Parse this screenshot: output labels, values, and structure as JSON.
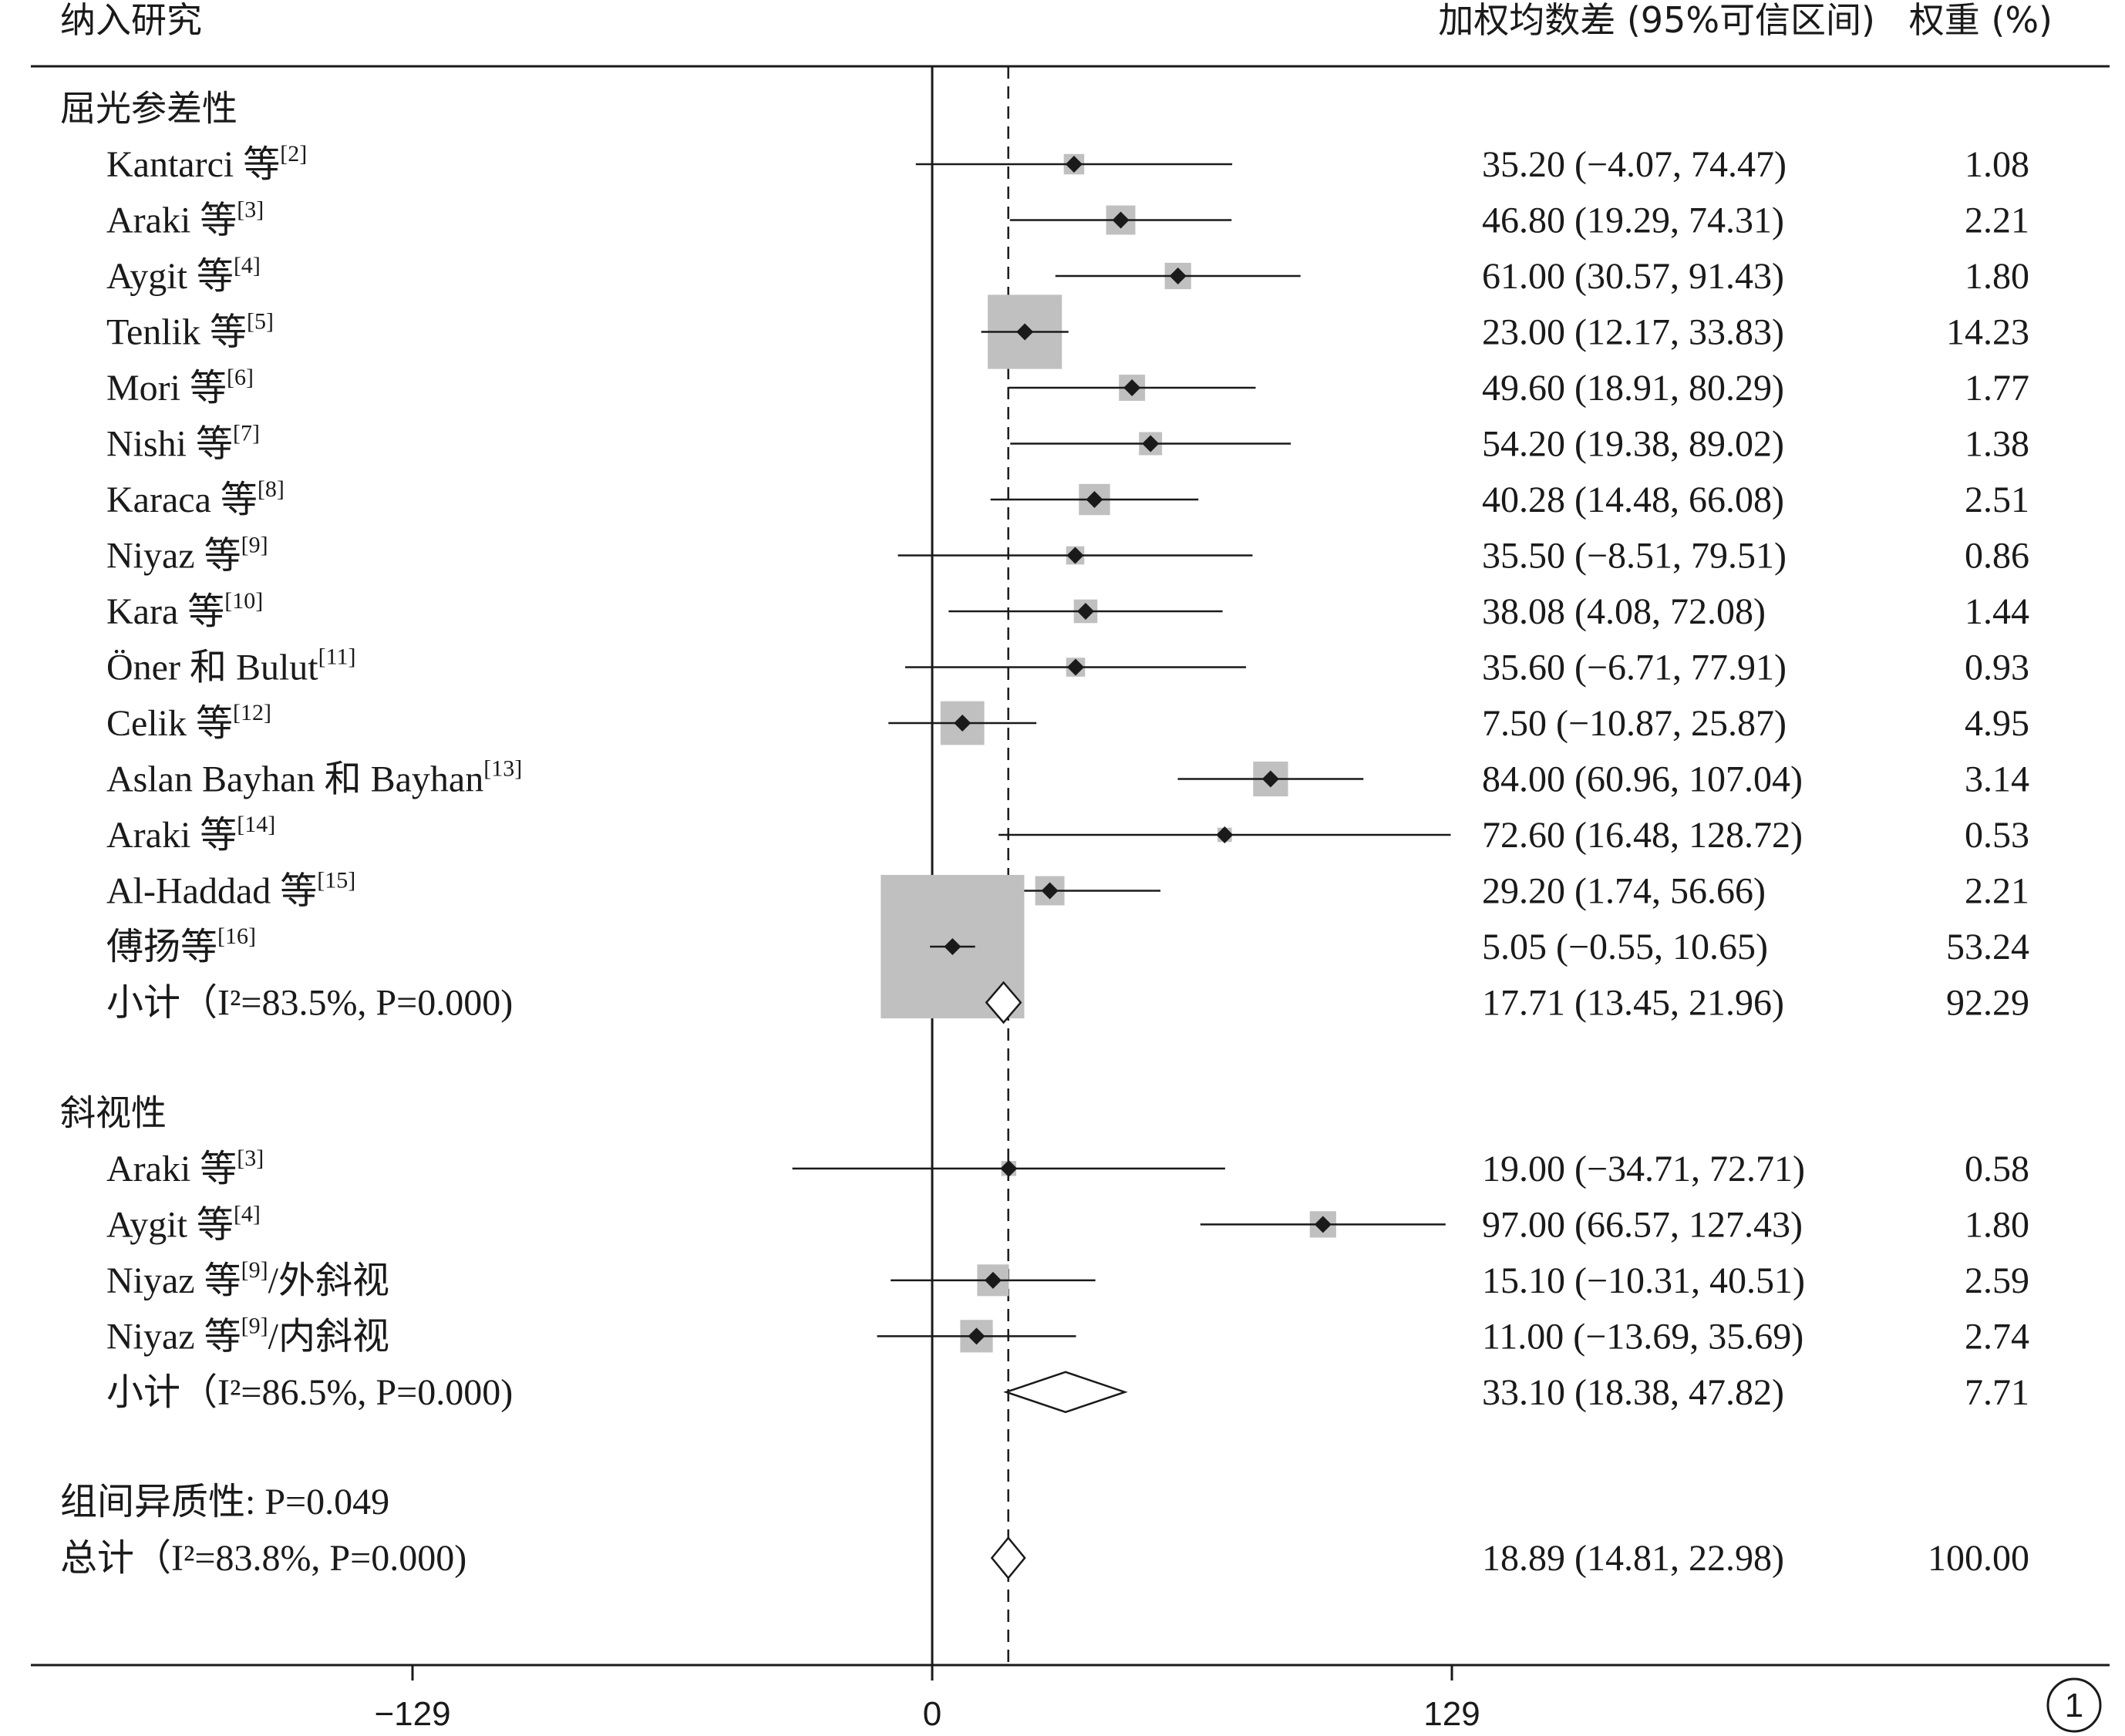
{
  "header": {
    "col_study": "纳入研究",
    "col_effect": "加权均数差 (95%可信区间)",
    "col_weight": "权重 (%)"
  },
  "page_marker": "1",
  "chart_data": {
    "type": "forest",
    "colors": {
      "marker": "#1a1a1a",
      "weight_box": "#c0c0c0",
      "line": "#1a1a1a"
    },
    "xaxis": {
      "ticks": [
        -129,
        0,
        129
      ],
      "tick_labels": [
        "−129",
        "0",
        "129"
      ],
      "range": [
        -129,
        129
      ]
    },
    "overall_reference_line": 18.89,
    "groups": [
      {
        "title": "屈光参差性",
        "studies": [
          {
            "label": "Kantarci 等",
            "ref": "[2]",
            "est": 35.2,
            "lo": -4.07,
            "hi": 74.47,
            "ci_text": "35.20 (−4.07, 74.47)",
            "weight": 1.08,
            "weight_text": "1.08"
          },
          {
            "label": "Araki 等",
            "ref": "[3]",
            "est": 46.8,
            "lo": 19.29,
            "hi": 74.31,
            "ci_text": "46.80 (19.29, 74.31)",
            "weight": 2.21,
            "weight_text": "2.21"
          },
          {
            "label": "Aygit 等",
            "ref": "[4]",
            "est": 61.0,
            "lo": 30.57,
            "hi": 91.43,
            "ci_text": "61.00 (30.57, 91.43)",
            "weight": 1.8,
            "weight_text": "1.80"
          },
          {
            "label": "Tenlik 等",
            "ref": "[5]",
            "est": 23.0,
            "lo": 12.17,
            "hi": 33.83,
            "ci_text": "23.00 (12.17, 33.83)",
            "weight": 14.23,
            "weight_text": "14.23"
          },
          {
            "label": "Mori 等",
            "ref": "[6]",
            "est": 49.6,
            "lo": 18.91,
            "hi": 80.29,
            "ci_text": "49.60 (18.91, 80.29)",
            "weight": 1.77,
            "weight_text": "1.77"
          },
          {
            "label": "Nishi 等",
            "ref": "[7]",
            "est": 54.2,
            "lo": 19.38,
            "hi": 89.02,
            "ci_text": "54.20 (19.38, 89.02)",
            "weight": 1.38,
            "weight_text": "1.38"
          },
          {
            "label": "Karaca 等",
            "ref": "[8]",
            "est": 40.28,
            "lo": 14.48,
            "hi": 66.08,
            "ci_text": "40.28 (14.48, 66.08)",
            "weight": 2.51,
            "weight_text": "2.51"
          },
          {
            "label": "Niyaz 等",
            "ref": "[9]",
            "est": 35.5,
            "lo": -8.51,
            "hi": 79.51,
            "ci_text": "35.50 (−8.51, 79.51)",
            "weight": 0.86,
            "weight_text": "0.86"
          },
          {
            "label": "Kara 等",
            "ref": "[10]",
            "est": 38.08,
            "lo": 4.08,
            "hi": 72.08,
            "ci_text": "38.08 (4.08, 72.08)",
            "weight": 1.44,
            "weight_text": "1.44"
          },
          {
            "label": "Öner 和 Bulut",
            "ref": "[11]",
            "est": 35.6,
            "lo": -6.71,
            "hi": 77.91,
            "ci_text": "35.60 (−6.71, 77.91)",
            "weight": 0.93,
            "weight_text": "0.93"
          },
          {
            "label": "Celik 等",
            "ref": "[12]",
            "est": 7.5,
            "lo": -10.87,
            "hi": 25.87,
            "ci_text": "7.50 (−10.87, 25.87)",
            "weight": 4.95,
            "weight_text": "4.95"
          },
          {
            "label": "Aslan Bayhan 和 Bayhan",
            "ref": "[13]",
            "est": 84.0,
            "lo": 60.96,
            "hi": 107.04,
            "ci_text": "84.00 (60.96, 107.04)",
            "weight": 3.14,
            "weight_text": "3.14"
          },
          {
            "label": "Araki 等",
            "ref": "[14]",
            "est": 72.6,
            "lo": 16.48,
            "hi": 128.72,
            "ci_text": "72.60 (16.48, 128.72)",
            "weight": 0.53,
            "weight_text": "0.53"
          },
          {
            "label": "Al-Haddad 等",
            "ref": "[15]",
            "est": 29.2,
            "lo": 1.74,
            "hi": 56.66,
            "ci_text": "29.20 (1.74, 56.66)",
            "weight": 2.21,
            "weight_text": "2.21"
          },
          {
            "label": "傅扬等",
            "ref": "[16]",
            "est": 5.05,
            "lo": -0.55,
            "hi": 10.65,
            "ci_text": "5.05 (−0.55, 10.65)",
            "weight": 53.24,
            "weight_text": "53.24"
          }
        ],
        "subtotal": {
          "label": "小计（I²=83.5%, P=0.000)",
          "i2": 83.5,
          "p": 0.0,
          "est": 17.71,
          "lo": 13.45,
          "hi": 21.96,
          "ci_text": "17.71 (13.45, 21.96)",
          "weight": 92.29,
          "weight_text": "92.29"
        }
      },
      {
        "title": "斜视性",
        "studies": [
          {
            "label": "Araki 等",
            "ref": "[3]",
            "est": 19.0,
            "lo": -34.71,
            "hi": 72.71,
            "ci_text": "19.00 (−34.71, 72.71)",
            "weight": 0.58,
            "weight_text": "0.58"
          },
          {
            "label": "Aygit 等",
            "ref": "[4]",
            "est": 97.0,
            "lo": 66.57,
            "hi": 127.43,
            "ci_text": "97.00 (66.57, 127.43)",
            "weight": 1.8,
            "weight_text": "1.80"
          },
          {
            "label": "Niyaz 等",
            "ref": "[9]",
            "suffix": "/外斜视",
            "est": 15.1,
            "lo": -10.31,
            "hi": 40.51,
            "ci_text": "15.10 (−10.31, 40.51)",
            "weight": 2.59,
            "weight_text": "2.59"
          },
          {
            "label": "Niyaz 等",
            "ref": "[9]",
            "suffix": "/内斜视",
            "est": 11.0,
            "lo": -13.69,
            "hi": 35.69,
            "ci_text": "11.00 (−13.69, 35.69)",
            "weight": 2.74,
            "weight_text": "2.74"
          }
        ],
        "subtotal": {
          "label": "小计（I²=86.5%, P=0.000)",
          "i2": 86.5,
          "p": 0.0,
          "est": 33.1,
          "lo": 18.38,
          "hi": 47.82,
          "ci_text": "33.10 (18.38, 47.82)",
          "weight": 7.71,
          "weight_text": "7.71"
        }
      }
    ],
    "heterogeneity_between_groups": {
      "label": "组间异质性: P=0.049",
      "p": 0.049
    },
    "overall": {
      "label": "总计（I²=83.8%, P=0.000)",
      "i2": 83.8,
      "p": 0.0,
      "est": 18.89,
      "lo": 14.81,
      "hi": 22.98,
      "ci_text": "18.89 (14.81, 22.98)",
      "weight": 100.0,
      "weight_text": "100.00"
    }
  }
}
